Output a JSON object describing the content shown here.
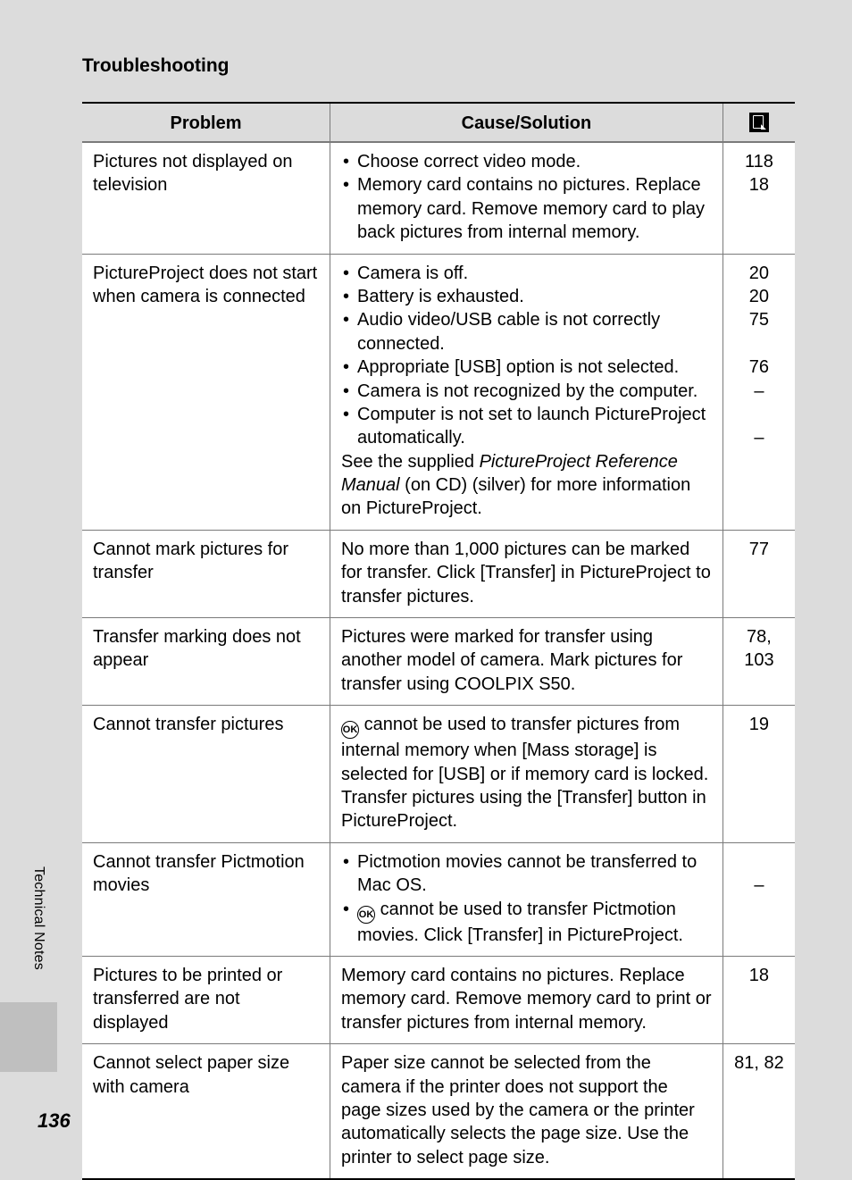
{
  "section_title": "Troubleshooting",
  "side_tab": "Technical Notes",
  "page_number": "136",
  "headers": {
    "problem": "Problem",
    "cause": "Cause/Solution"
  },
  "ok_glyph_text": "OK",
  "rows": [
    {
      "problem": "Pictures not displayed on television",
      "bullets": [
        "Choose correct video mode.",
        "Memory card contains no pictures. Replace memory card. Remove memory card to play back pictures from internal memory."
      ],
      "refs": [
        "118",
        "18"
      ]
    },
    {
      "problem": "PictureProject does not start when camera is connected",
      "bullets": [
        "Camera is off.",
        "Battery is exhausted.",
        "Audio video/USB cable is not correctly connected.",
        "Appropriate [USB] option is not selected.",
        "Camera is not recognized by the computer.",
        "Computer is not set to launch PictureProject automatically."
      ],
      "after_bullets_pre": "See the supplied ",
      "after_bullets_italic": "PictureProject Reference Manual",
      "after_bullets_post": " (on CD) (silver) for more information on PictureProject.",
      "refs": [
        "20",
        "20",
        "75",
        "",
        "76",
        "–",
        "",
        "–"
      ]
    },
    {
      "problem": "Cannot mark pictures for transfer",
      "plain": "No more than 1,000 pictures can be marked for transfer. Click [Transfer] in PictureProject to transfer pictures.",
      "refs": [
        "77"
      ]
    },
    {
      "problem": "Transfer marking does not appear",
      "plain": "Pictures were marked for transfer using another model of camera. Mark pictures for transfer using COOLPIX S50.",
      "refs": [
        "78,",
        "103"
      ]
    },
    {
      "problem": "Cannot transfer pictures",
      "ok_prefix": true,
      "plain_after_ok": " cannot be used to transfer pictures from internal memory when [Mass storage] is selected for [USB] or if memory card is locked. Transfer pictures using the [Transfer] button in PictureProject.",
      "refs": [
        "19"
      ]
    },
    {
      "problem": "Cannot transfer Pictmotion movies",
      "bullets": [
        "Pictmotion movies cannot be transferred to Mac OS.",
        {
          "ok_prefix": true,
          "text": " cannot be used to transfer Pictmotion movies. Click [Transfer] in PictureProject."
        }
      ],
      "refs": [
        "",
        "–"
      ]
    },
    {
      "problem": "Pictures to be printed or transferred are not displayed",
      "plain": "Memory card contains no pictures. Replace memory card. Remove memory card to print or transfer pictures from internal memory.",
      "refs": [
        "18"
      ]
    },
    {
      "problem": "Cannot select paper size with camera",
      "plain": "Paper size cannot be selected from the camera if the printer does not support the page sizes used by the camera or the printer automatically selects the page size. Use the printer to select page size.",
      "refs": [
        "81, 82"
      ]
    }
  ]
}
